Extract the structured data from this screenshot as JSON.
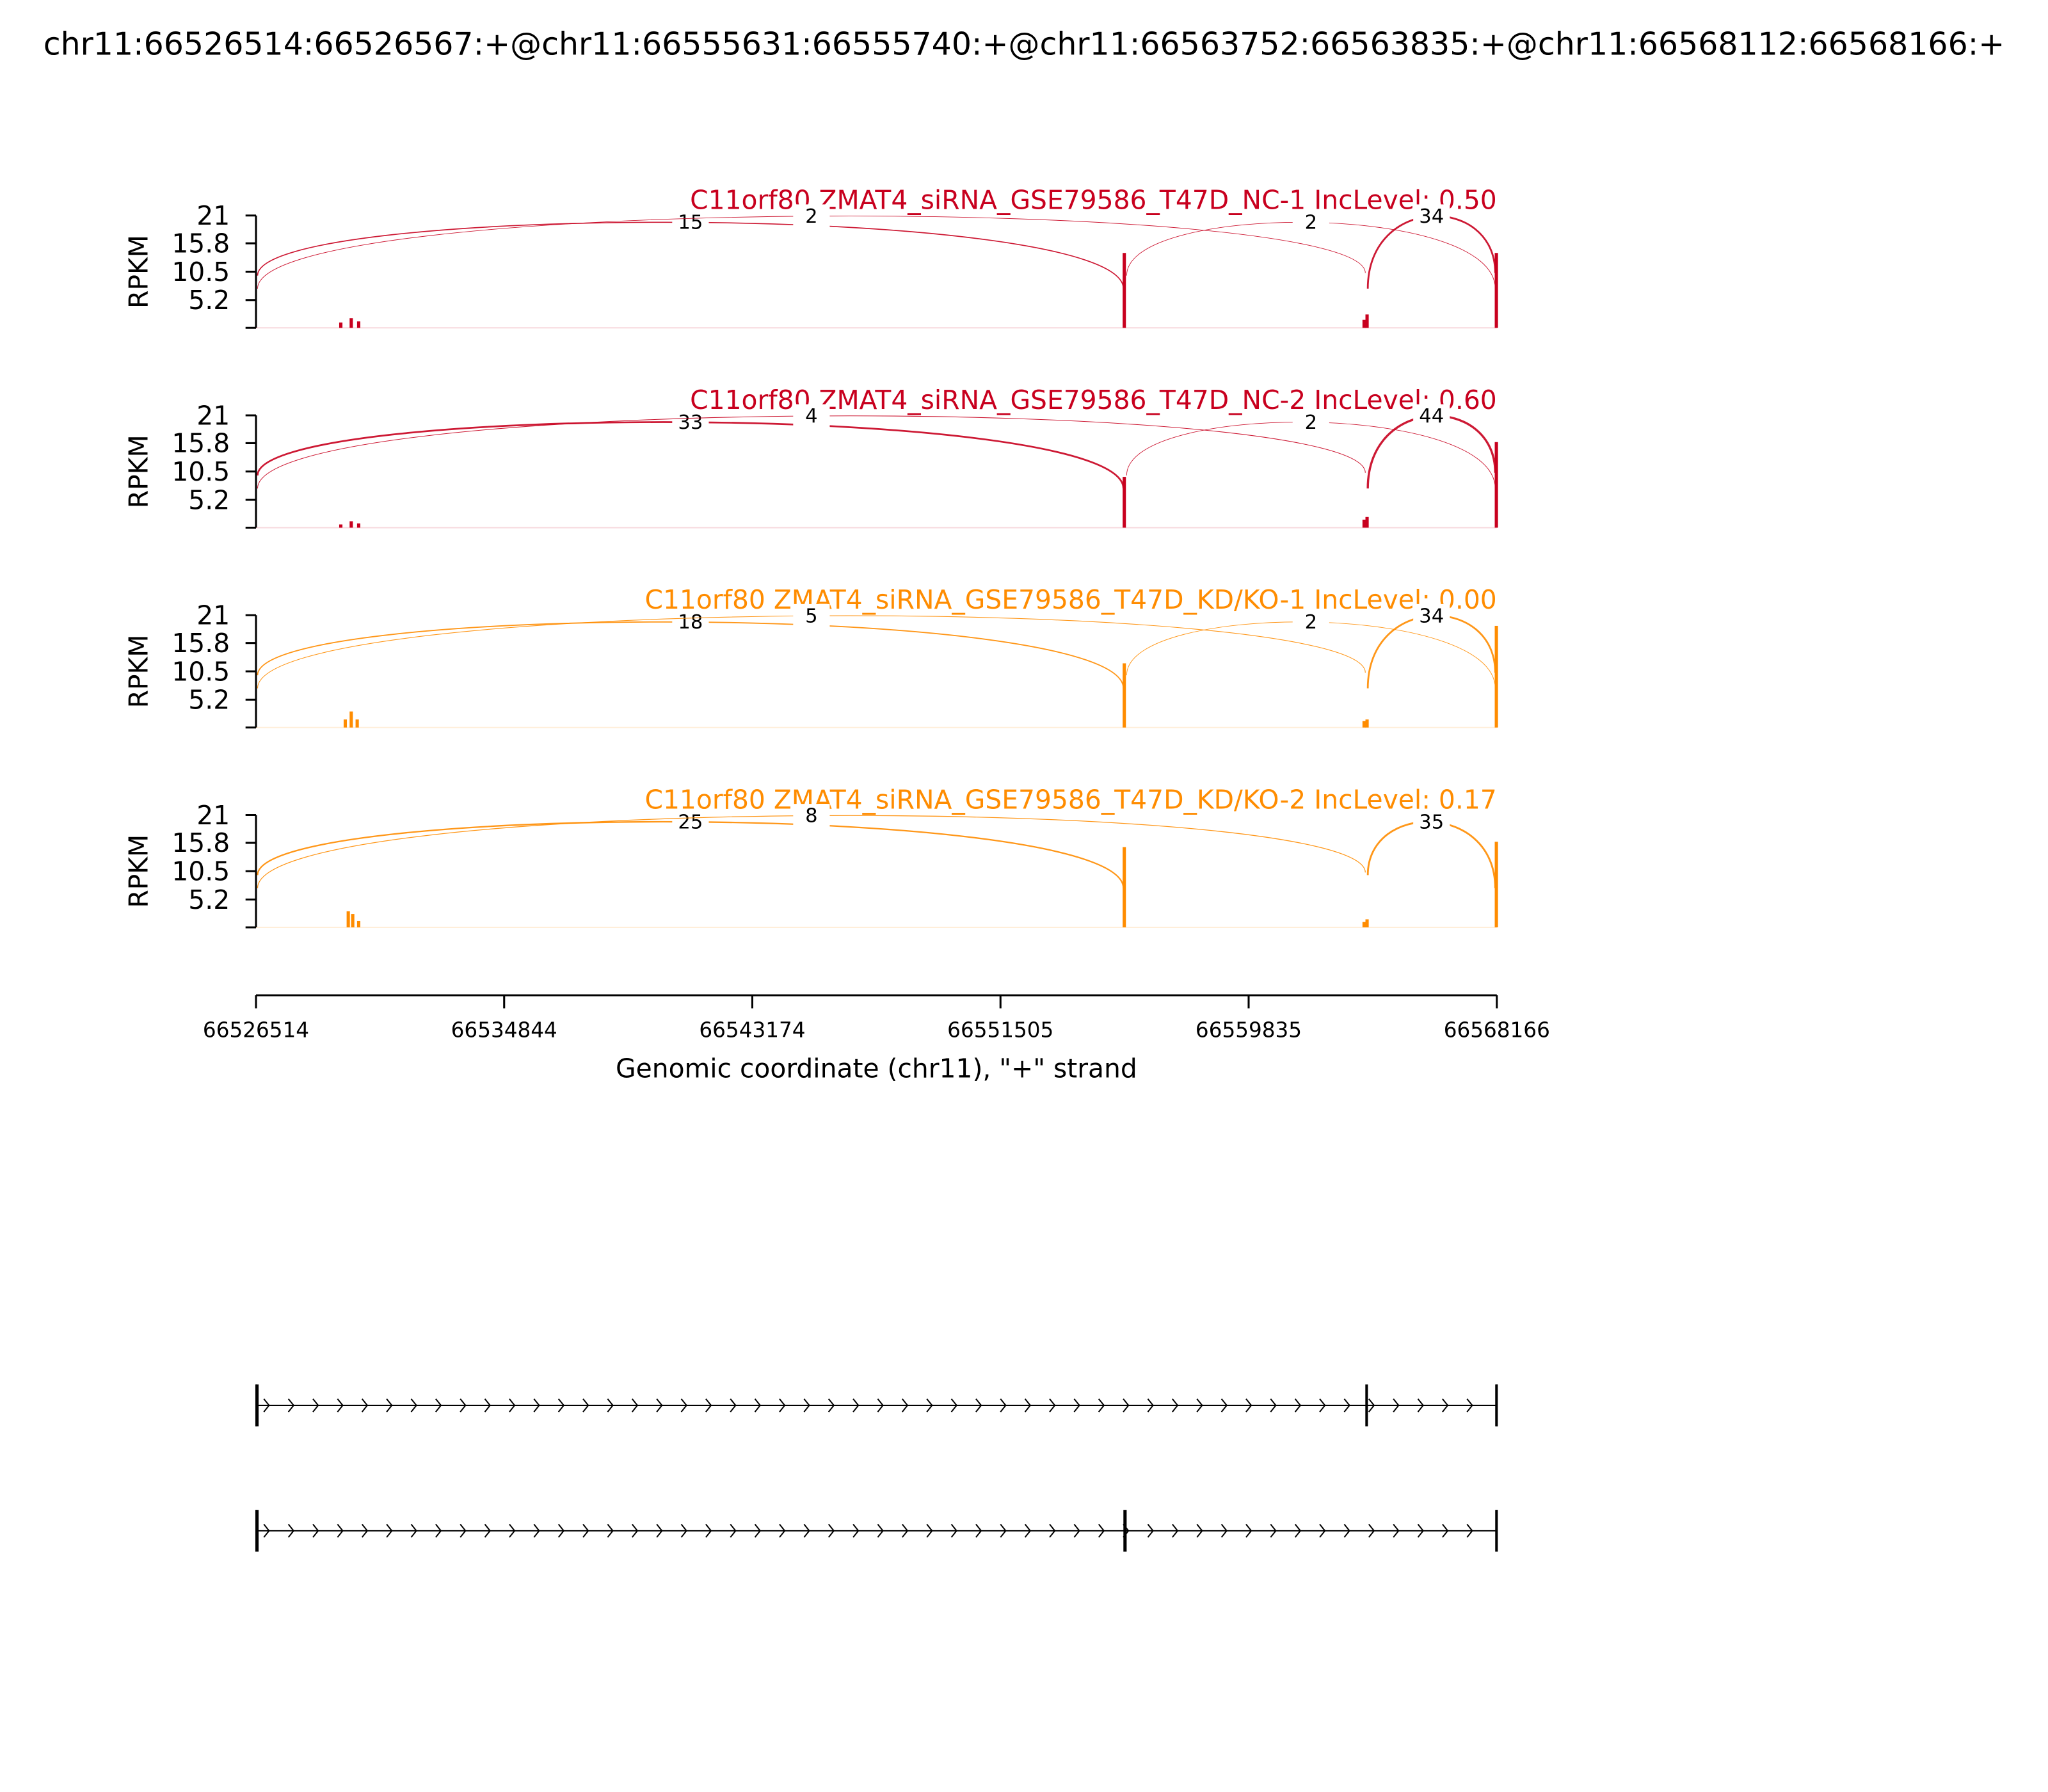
{
  "title": "chr11:66526514:66526567:+@chr11:66555631:66555740:+@chr11:66563752:66563835:+@chr11:66568112:66568166:+",
  "chart_data": {
    "type": "sashimi",
    "xlabel": "Genomic coordinate (chr11), \"+\" strand",
    "xlim": [
      66526514,
      66568166
    ],
    "xticks": [
      66526514,
      66534844,
      66543174,
      66551505,
      66559835,
      66568166
    ],
    "tracks": [
      {
        "title": "C11orf80 ZMAT4_siRNA_GSE79586_T47D_NC-1 IncLevel: 0.50",
        "color": "#c8001e",
        "ylabel": "RPKM",
        "ylim": [
          0,
          21
        ],
        "yticks": [
          5.2,
          10.5,
          15.8,
          21
        ],
        "coverage": {
          "x": [
            66529350,
            66529700,
            66529950,
            66555650,
            66563700,
            66563800,
            66568140
          ],
          "values": [
            1,
            1.8,
            1.2,
            14,
            1.5,
            2.5,
            14
          ]
        },
        "junctions": [
          {
            "start": 66526567,
            "end": 66555631,
            "count": 15
          },
          {
            "start": 66526567,
            "end": 66563752,
            "count": 2
          },
          {
            "start": 66555740,
            "end": 66568112,
            "count": 2
          },
          {
            "start": 66563835,
            "end": 66568112,
            "count": 34
          }
        ]
      },
      {
        "title": "C11orf80 ZMAT4_siRNA_GSE79586_T47D_NC-2 IncLevel: 0.60",
        "color": "#c8001e",
        "ylabel": "RPKM",
        "ylim": [
          0,
          21
        ],
        "yticks": [
          5.2,
          10.5,
          15.8,
          21
        ],
        "coverage": {
          "x": [
            66529350,
            66529700,
            66529950,
            66555650,
            66563700,
            66563800,
            66568140
          ],
          "values": [
            0.6,
            1.2,
            0.8,
            9.5,
            1.5,
            2,
            16
          ]
        },
        "junctions": [
          {
            "start": 66526567,
            "end": 66555631,
            "count": 33
          },
          {
            "start": 66526567,
            "end": 66563752,
            "count": 4
          },
          {
            "start": 66555740,
            "end": 66568112,
            "count": 2
          },
          {
            "start": 66563835,
            "end": 66568112,
            "count": 44
          }
        ]
      },
      {
        "title": "C11orf80 ZMAT4_siRNA_GSE79586_T47D_KD/KO-1 IncLevel: 0.00",
        "color": "#ff8c00",
        "ylabel": "RPKM",
        "ylim": [
          0,
          21
        ],
        "yticks": [
          5.2,
          10.5,
          15.8,
          21
        ],
        "coverage": {
          "x": [
            66529500,
            66529700,
            66529900,
            66555650,
            66563700,
            66563800,
            66568140
          ],
          "values": [
            1.5,
            3,
            1.5,
            12,
            1.2,
            1.5,
            19
          ]
        },
        "junctions": [
          {
            "start": 66526567,
            "end": 66555631,
            "count": 18
          },
          {
            "start": 66526567,
            "end": 66563752,
            "count": 5
          },
          {
            "start": 66555740,
            "end": 66568112,
            "count": 2
          },
          {
            "start": 66563835,
            "end": 66568112,
            "count": 34
          }
        ]
      },
      {
        "title": "C11orf80 ZMAT4_siRNA_GSE79586_T47D_KD/KO-2 IncLevel: 0.17",
        "color": "#ff8c00",
        "ylabel": "RPKM",
        "ylim": [
          0,
          21
        ],
        "yticks": [
          5.2,
          10.5,
          15.8,
          21
        ],
        "coverage": {
          "x": [
            66529600,
            66529750,
            66529950,
            66555650,
            66563700,
            66563800,
            66568140
          ],
          "values": [
            3,
            2.5,
            1.2,
            15,
            1,
            1.5,
            16
          ]
        },
        "junctions": [
          {
            "start": 66526567,
            "end": 66555631,
            "count": 25
          },
          {
            "start": 66526567,
            "end": 66563752,
            "count": 8
          },
          {
            "start": 66563835,
            "end": 66568112,
            "count": 35
          }
        ]
      }
    ],
    "transcripts": [
      {
        "exons": [
          [
            66526514,
            66526567
          ],
          [
            66563752,
            66563835
          ],
          [
            66568112,
            66568166
          ]
        ]
      },
      {
        "exons": [
          [
            66526514,
            66526567
          ],
          [
            66555631,
            66555740
          ],
          [
            66568112,
            66568166
          ]
        ]
      }
    ]
  }
}
